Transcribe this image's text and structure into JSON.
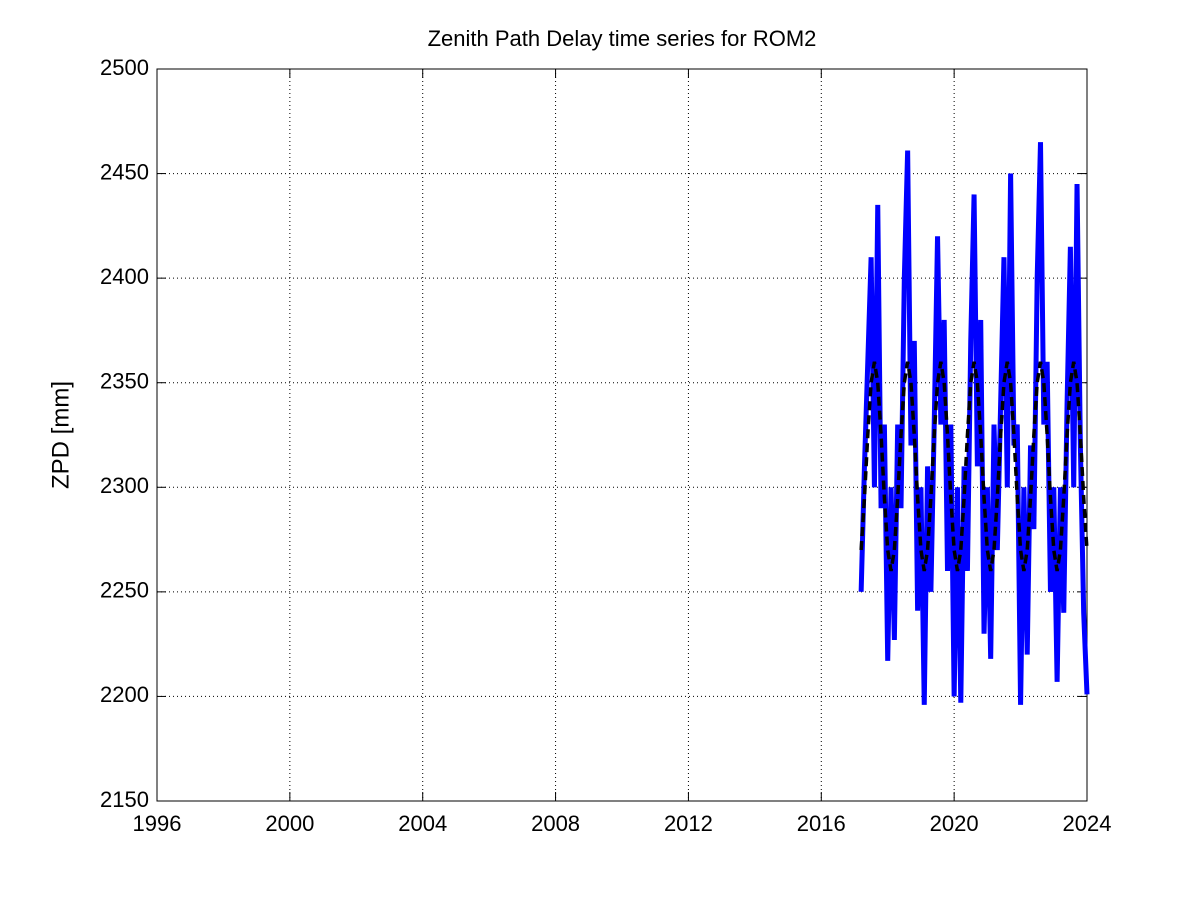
{
  "chart_data": {
    "type": "line",
    "title": "Zenith Path Delay time series for ROM2",
    "y_label": "ZPD [mm]",
    "x": [
      2017.2,
      2017.3,
      2017.4,
      2017.5,
      2017.6,
      2017.7,
      2017.8,
      2017.9,
      2018.0,
      2018.1,
      2018.2,
      2018.3,
      2018.4,
      2018.5,
      2018.6,
      2018.7,
      2018.8,
      2018.9,
      2019.0,
      2019.1,
      2019.2,
      2019.3,
      2019.4,
      2019.5,
      2019.6,
      2019.7,
      2019.8,
      2019.9,
      2020.0,
      2020.1,
      2020.2,
      2020.3,
      2020.4,
      2020.5,
      2020.6,
      2020.7,
      2020.8,
      2020.9,
      2021.0,
      2021.1,
      2021.2,
      2021.3,
      2021.4,
      2021.5,
      2021.6,
      2021.7,
      2021.8,
      2021.9,
      2022.0,
      2022.1,
      2022.2,
      2022.3,
      2022.4,
      2022.5,
      2022.6,
      2022.7,
      2022.8,
      2022.9,
      2023.0,
      2023.1,
      2023.2,
      2023.3,
      2023.4,
      2023.5,
      2023.6,
      2023.7,
      2023.8,
      2023.9,
      2024.0
    ],
    "series": [
      {
        "color": "#0000ff",
        "dashed": false,
        "values": [
          2250,
          2310,
          2360,
          2410,
          2300,
          2435,
          2290,
          2330,
          2217,
          2300,
          2227,
          2330,
          2290,
          2400,
          2461,
          2320,
          2370,
          2241,
          2300,
          2196,
          2310,
          2250,
          2330,
          2420,
          2330,
          2380,
          2260,
          2330,
          2200,
          2300,
          2197,
          2310,
          2260,
          2370,
          2440,
          2310,
          2380,
          2230,
          2300,
          2218,
          2330,
          2270,
          2340,
          2410,
          2300,
          2450,
          2320,
          2330,
          2196,
          2300,
          2220,
          2320,
          2280,
          2400,
          2465,
          2330,
          2360,
          2250,
          2300,
          2207,
          2300,
          2240,
          2340,
          2415,
          2300,
          2445,
          2320,
          2240,
          2201
        ]
      },
      {
        "color": "#000000",
        "dashed": true,
        "values": [
          2270,
          2295,
          2325,
          2350,
          2360,
          2350,
          2325,
          2295,
          2270,
          2260,
          2270,
          2295,
          2325,
          2350,
          2360,
          2350,
          2325,
          2295,
          2270,
          2260,
          2270,
          2295,
          2325,
          2350,
          2360,
          2350,
          2325,
          2295,
          2270,
          2260,
          2270,
          2295,
          2325,
          2350,
          2360,
          2350,
          2325,
          2295,
          2270,
          2260,
          2270,
          2295,
          2325,
          2350,
          2360,
          2350,
          2325,
          2295,
          2270,
          2260,
          2270,
          2295,
          2325,
          2350,
          2360,
          2350,
          2325,
          2295,
          2270,
          2260,
          2270,
          2295,
          2325,
          2350,
          2360,
          2350,
          2325,
          2295,
          2270
        ]
      }
    ],
    "xlim": [
      1996,
      2024
    ],
    "xticks": [
      1996,
      2000,
      2004,
      2008,
      2012,
      2016,
      2020,
      2024
    ],
    "ylim": [
      2150,
      2500
    ],
    "yticks": [
      2150,
      2200,
      2250,
      2300,
      2350,
      2400,
      2450,
      2500
    ],
    "grid": true
  }
}
